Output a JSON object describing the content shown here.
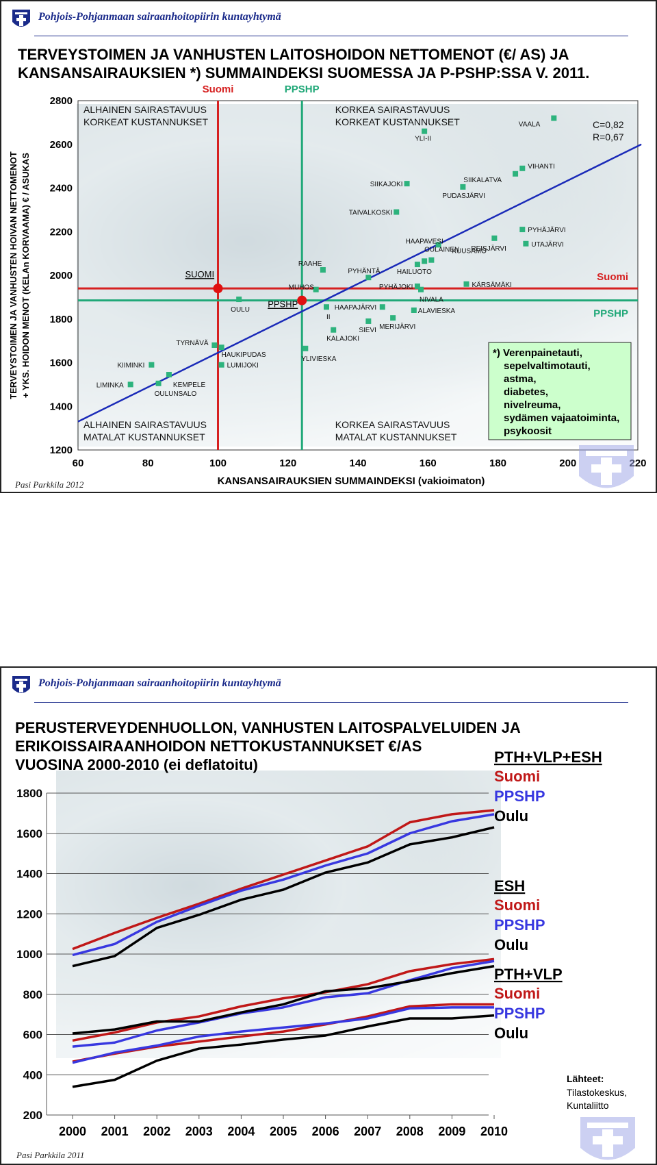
{
  "org_name": "Pohjois-Pohjanmaan sairaanhoitopiirin kuntayhtymä",
  "chart_data": [
    {
      "type": "scatter",
      "title_line1": "TERVEYSTOIMEN JA VANHUSTEN LAITOSHOIDON NETTOMENOT (€/ AS) JA",
      "title_line2": "KANSANSAIRAUKSIEN *) SUMMAINDEKSI SUOMESSA JA P-PSHP:SSA V. 2011.",
      "xlabel": "KANSANSAIRAUKSIEN SUMMAINDEKSI (vakioimaton)",
      "ylabel_line1": "TERVEYSTOIMEN JA VANHUSTEN HOIVAN NETTOMENOT",
      "ylabel_line2": "+ YKS. HOIDON MENOT (KELAn KORVAAMA) € / ASUKAS",
      "xlim": [
        60,
        220
      ],
      "ylim": [
        1200,
        2800
      ],
      "xticks": [
        60,
        80,
        100,
        120,
        140,
        160,
        180,
        200,
        220
      ],
      "yticks": [
        1200,
        1400,
        1600,
        1800,
        2000,
        2200,
        2400,
        2600,
        2800
      ],
      "grid": false,
      "points": [
        {
          "name": "VAALA",
          "x": 196,
          "y": 2720
        },
        {
          "name": "YLI-II",
          "x": 159,
          "y": 2660
        },
        {
          "name": "VIHANTI",
          "x": 187,
          "y": 2490
        },
        {
          "name": "SIIKALATVA",
          "x": 185,
          "y": 2465
        },
        {
          "name": "SIIKAJOKI",
          "x": 154,
          "y": 2420
        },
        {
          "name": "PUDASJÄRVI",
          "x": 170,
          "y": 2405
        },
        {
          "name": "TAIVALKOSKI",
          "x": 151,
          "y": 2290
        },
        {
          "name": "PYHÄJÄRVI",
          "x": 187,
          "y": 2210
        },
        {
          "name": "REISJÄRVI",
          "x": 179,
          "y": 2170
        },
        {
          "name": "UTAJÄRVI",
          "x": 188,
          "y": 2145
        },
        {
          "name": "HAAPAVESI",
          "x": 163,
          "y": 2140
        },
        {
          "name": "OULAINEN",
          "x": 159,
          "y": 2065
        },
        {
          "name": "HAILUOTO",
          "x": 157,
          "y": 2050
        },
        {
          "name": "RAAHE",
          "x": 130,
          "y": 2025
        },
        {
          "name": "PYHÄNTÄ",
          "x": 143,
          "y": 1990
        },
        {
          "name": "KUUSAMO",
          "x": 161,
          "y": 2070
        },
        {
          "name": "KÄRSÄMÄKI",
          "x": 171,
          "y": 1960
        },
        {
          "name": "PYHÄJOKI",
          "x": 157,
          "y": 1950
        },
        {
          "name": "NIVALA",
          "x": 158,
          "y": 1935
        },
        {
          "name": "MUHOS",
          "x": 128,
          "y": 1935
        },
        {
          "name": "OULU",
          "x": 106,
          "y": 1890
        },
        {
          "name": "II",
          "x": 131,
          "y": 1855
        },
        {
          "name": "HAAPAJÄRVI",
          "x": 147,
          "y": 1855
        },
        {
          "name": "ALAVIESKA",
          "x": 156,
          "y": 1840
        },
        {
          "name": "MERIJÄRVI",
          "x": 150,
          "y": 1805
        },
        {
          "name": "SIEVI",
          "x": 143,
          "y": 1790
        },
        {
          "name": "KALAJOKI",
          "x": 133,
          "y": 1750
        },
        {
          "name": "TYRNÄVÄ",
          "x": 99,
          "y": 1680
        },
        {
          "name": "HAUKIPUDAS",
          "x": 101,
          "y": 1670
        },
        {
          "name": "YLIVIESKA",
          "x": 125,
          "y": 1665
        },
        {
          "name": "KIIMINKI",
          "x": 81,
          "y": 1590
        },
        {
          "name": "LUMIJOKI",
          "x": 101,
          "y": 1590
        },
        {
          "name": "KEMPELE",
          "x": 86,
          "y": 1545
        },
        {
          "name": "LIMINKA",
          "x": 75,
          "y": 1500
        },
        {
          "name": "OULUNSALO",
          "x": 83,
          "y": 1505
        }
      ],
      "regression_line": {
        "x": [
          60,
          221
        ],
        "y": [
          1330,
          2600
        ]
      },
      "reference_lines": [
        {
          "label": "Suomi",
          "axis": "x",
          "value": 100,
          "color": "#d62020"
        },
        {
          "label": "PPSHP",
          "axis": "x",
          "value": 124,
          "color": "#20a878"
        },
        {
          "label": "Suomi",
          "axis": "y",
          "value": 1940,
          "color": "#d62020"
        },
        {
          "label": "PPSHP",
          "axis": "y",
          "value": 1885,
          "color": "#20a878"
        }
      ],
      "markers": [
        {
          "label": "SUOMI",
          "x": 100,
          "y": 1940
        },
        {
          "label": "PPSHP",
          "x": 124,
          "y": 1885
        }
      ],
      "quadrant_labels": {
        "top_left": [
          "ALHAINEN SAIRASTAVUUS",
          "KORKEAT KUSTANNUKSET"
        ],
        "top_right": [
          "KORKEA SAIRASTAVUUS",
          "KORKEAT KUSTANNUKSET"
        ],
        "bottom_left": [
          "ALHAINEN SAIRASTAVUUS",
          "MATALAT KUSTANNUKSET"
        ],
        "bottom_right": [
          "KORKEA SAIRASTAVUUS",
          "MATALAT KUSTANNUKSET"
        ]
      },
      "stats": [
        "C=0,82",
        "R=0,67"
      ],
      "footnote": [
        "*) Verenpainetauti,",
        "sepelvaltimotauti,",
        "astma,",
        "diabetes,",
        "nivelreuma,",
        "sydämen vajaatoiminta,",
        "psykoosit"
      ],
      "colors": {
        "points": "#2db37d",
        "regression": "#1a2ab8",
        "suomi": "#d62020",
        "ppshp": "#20a878",
        "footnote_bg": "#ccffcc"
      }
    },
    {
      "type": "line",
      "title_line1": "PERUSTERVEYDENHUOLLON, VANHUSTEN LAITOSPALVELUIDEN JA",
      "title_line2": "ERIKOISSAIRAANHOIDON NETTOKUSTANNUKSET €/AS",
      "title_line3": "VUOSINA 2000-2010 (ei deflatoitu)",
      "x": [
        "2000",
        "2001",
        "2002",
        "2003",
        "2004",
        "2005",
        "2006",
        "2007",
        "2008",
        "2009",
        "2010"
      ],
      "ylim": [
        200,
        1800
      ],
      "yticks": [
        200,
        400,
        600,
        800,
        1000,
        1200,
        1400,
        1600,
        1800
      ],
      "grid": true,
      "groups": [
        {
          "label": "PTH+VLP+ESH",
          "series": [
            {
              "name": "Suomi",
              "color": "#c01818",
              "values": [
                1025,
                1105,
                1180,
                1250,
                1325,
                1395,
                1465,
                1535,
                1655,
                1695,
                1715
              ]
            },
            {
              "name": "PPSHP",
              "color": "#3838e0",
              "values": [
                995,
                1050,
                1160,
                1240,
                1315,
                1370,
                1440,
                1500,
                1600,
                1660,
                1695
              ]
            },
            {
              "name": "Oulu",
              "color": "#000000",
              "values": [
                940,
                990,
                1130,
                1195,
                1270,
                1320,
                1405,
                1455,
                1545,
                1580,
                1630
              ]
            }
          ]
        },
        {
          "label": "ESH",
          "series": [
            {
              "name": "Suomi",
              "color": "#c01818",
              "values": [
                570,
                610,
                660,
                690,
                740,
                780,
                810,
                850,
                915,
                950,
                975
              ]
            },
            {
              "name": "PPSHP",
              "color": "#3838e0",
              "values": [
                540,
                560,
                620,
                660,
                705,
                735,
                785,
                805,
                870,
                930,
                965
              ]
            },
            {
              "name": "Oulu",
              "color": "#000000",
              "values": [
                605,
                625,
                665,
                665,
                710,
                750,
                815,
                830,
                865,
                905,
                940
              ]
            }
          ]
        },
        {
          "label": "PTH+VLP",
          "series": [
            {
              "name": "Suomi",
              "color": "#c01818",
              "values": [
                465,
                505,
                540,
                565,
                590,
                615,
                650,
                690,
                740,
                750,
                750
              ]
            },
            {
              "name": "PPSHP",
              "color": "#3838e0",
              "values": [
                460,
                510,
                545,
                590,
                615,
                635,
                655,
                680,
                730,
                735,
                735
              ]
            },
            {
              "name": "Oulu",
              "color": "#000000",
              "values": [
                340,
                375,
                470,
                530,
                550,
                575,
                595,
                640,
                680,
                680,
                695
              ]
            }
          ]
        }
      ],
      "sources_title": "Lähteet:",
      "sources": [
        "Tilastokeskus,",
        "Kuntaliitto"
      ]
    }
  ],
  "credits": {
    "slide1": "Pasi Parkkila 2012",
    "slide2": "Pasi Parkkila 2011"
  }
}
